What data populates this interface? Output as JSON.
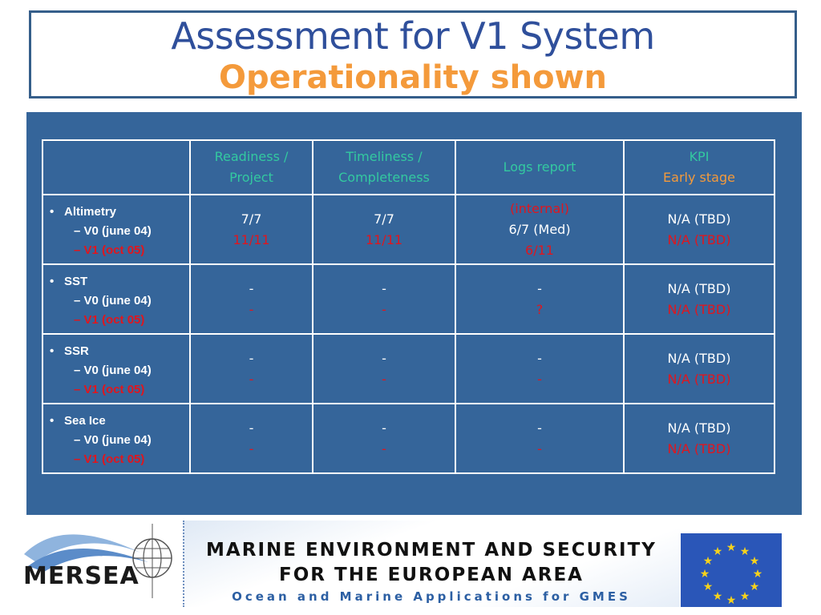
{
  "slide": {
    "title": "Assessment for V1 System",
    "subtitle": "Operationality shown"
  },
  "table": {
    "headers": {
      "readiness": [
        "Readiness /",
        "Project"
      ],
      "timeliness": [
        "Timeliness /",
        "Completeness"
      ],
      "logs": "Logs report",
      "kpi": "KPI",
      "kpi_stage": "Early stage"
    },
    "rows": [
      {
        "name": "Altimetry",
        "v0": "V0 (june 04)",
        "v1": "V1 (oct 05)",
        "readiness": [
          "7/7",
          "11/11"
        ],
        "timeliness": [
          "7/7",
          "11/11"
        ],
        "logs_note": "(internal)",
        "logs": [
          "6/7 (Med)",
          "6/11"
        ],
        "kpi": [
          "N/A (TBD)",
          "N/A (TBD)"
        ]
      },
      {
        "name": "SST",
        "v0": "V0 (june 04)",
        "v1": "V1 (oct 05)",
        "readiness": [
          "-",
          "-"
        ],
        "timeliness": [
          "-",
          "-"
        ],
        "logs": [
          "-",
          "?"
        ],
        "kpi": [
          "N/A (TBD)",
          "N/A (TBD)"
        ]
      },
      {
        "name": "SSR",
        "v0": "V0 (june 04)",
        "v1": "V1 (oct 05)",
        "readiness": [
          "-",
          "-"
        ],
        "timeliness": [
          "-",
          "-"
        ],
        "logs": [
          "-",
          "-"
        ],
        "kpi": [
          "N/A (TBD)",
          "N/A (TBD)"
        ]
      },
      {
        "name": "Sea Ice",
        "v0": "V0 (june 04)",
        "v1": "V1 (oct 05)",
        "readiness": [
          "-",
          "-"
        ],
        "timeliness": [
          "-",
          "-"
        ],
        "logs": [
          "-",
          "-"
        ],
        "kpi": [
          "N/A (TBD)",
          "N/A (TBD)"
        ]
      }
    ]
  },
  "footer": {
    "logo_text": "MERSEA",
    "banner_line1": "MARINE ENVIRONMENT AND SECURITY",
    "banner_line2": "FOR THE EUROPEAN AREA",
    "banner_line3": "Ocean and Marine Applications for GMES"
  },
  "colors": {
    "title_blue": "#2f4f9b",
    "subtitle_orange": "#f49a3b",
    "panel_blue": "#35659a",
    "header_green": "#33c9a0",
    "v1_red": "#e0161e"
  }
}
